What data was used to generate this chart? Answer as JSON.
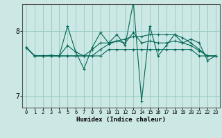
{
  "xlabel": "Humidex (Indice chaleur)",
  "bg_color": "#cce8e4",
  "grid_color": "#99ccc8",
  "line_color": "#006655",
  "xlim": [
    -0.5,
    23.5
  ],
  "ylim": [
    6.82,
    8.42
  ],
  "yticks": [
    7,
    8
  ],
  "xticks": [
    0,
    1,
    2,
    3,
    4,
    5,
    6,
    7,
    8,
    9,
    10,
    11,
    12,
    13,
    14,
    15,
    16,
    17,
    18,
    19,
    20,
    21,
    22,
    23
  ],
  "series": [
    [
      7.75,
      7.62,
      7.62,
      7.63,
      7.62,
      8.08,
      7.68,
      7.42,
      7.75,
      7.98,
      7.82,
      7.95,
      7.78,
      8.45,
      6.92,
      8.08,
      7.62,
      7.78,
      7.95,
      7.82,
      7.88,
      7.82,
      7.55,
      7.62
    ],
    [
      7.75,
      7.62,
      7.62,
      7.62,
      7.62,
      7.78,
      7.68,
      7.62,
      7.72,
      7.82,
      7.82,
      7.85,
      7.82,
      7.98,
      7.82,
      7.85,
      7.82,
      7.82,
      7.85,
      7.82,
      7.78,
      7.7,
      7.62,
      7.62
    ],
    [
      7.75,
      7.62,
      7.62,
      7.62,
      7.62,
      7.62,
      7.62,
      7.62,
      7.62,
      7.62,
      7.72,
      7.72,
      7.72,
      7.72,
      7.72,
      7.72,
      7.72,
      7.72,
      7.72,
      7.72,
      7.72,
      7.62,
      7.62,
      7.62
    ],
    [
      7.75,
      7.62,
      7.62,
      7.62,
      7.62,
      7.62,
      7.62,
      7.62,
      7.62,
      7.72,
      7.8,
      7.85,
      7.88,
      7.92,
      7.92,
      7.95,
      7.95,
      7.95,
      7.95,
      7.9,
      7.82,
      7.72,
      7.62,
      7.62
    ]
  ]
}
